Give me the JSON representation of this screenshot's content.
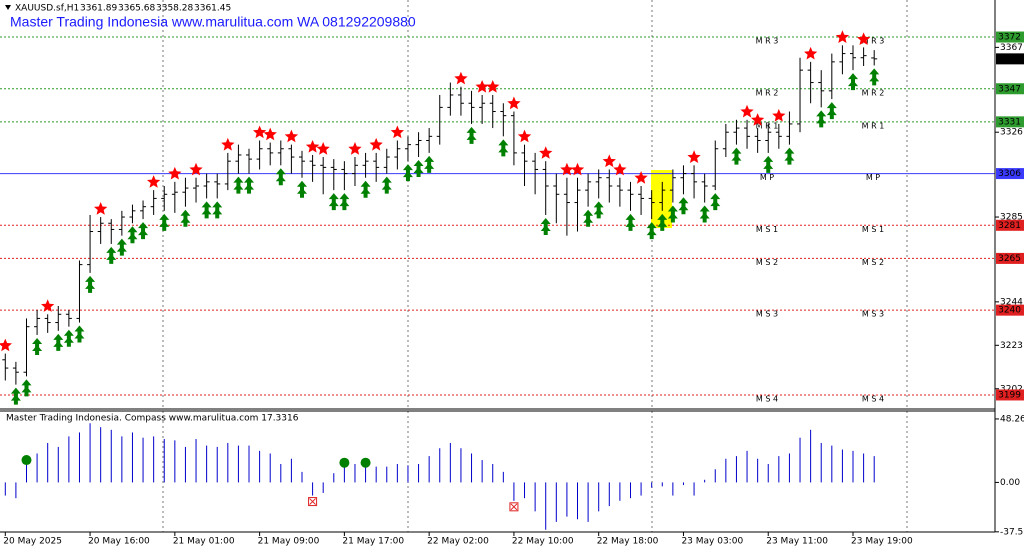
{
  "chart_data": [
    {
      "type": "ohlc",
      "symbol": "XAUUSD.sf,H1",
      "title": "Master Trading Indonesia www.marulitua.com WA 081292209880",
      "xlim": [
        -0.5,
        93.4
      ],
      "ylim": [
        3192.7,
        3389.9
      ],
      "yticks": [
        3367,
        3326,
        3285,
        3244,
        3223,
        3202
      ],
      "xticks": [
        {
          "value": 0,
          "label": "20 May 2025"
        },
        {
          "value": 8,
          "label": "20 May 16:00"
        },
        {
          "value": 16,
          "label": "21 May 01:00"
        },
        {
          "value": 24,
          "label": "21 May 09:00"
        },
        {
          "value": 32,
          "label": "21 May 17:00"
        },
        {
          "value": 40,
          "label": "22 May 02:00"
        },
        {
          "value": 48,
          "label": "22 May 10:00"
        },
        {
          "value": 56,
          "label": "22 May 18:00"
        },
        {
          "value": 64,
          "label": "23 May 03:00"
        },
        {
          "value": 72,
          "label": "23 May 11:00"
        },
        {
          "value": 80,
          "label": "23 May 19:00"
        }
      ],
      "bar_color": "#000000",
      "ohlc": [
        [
          3216,
          3219,
          3206,
          3212
        ],
        [
          3212,
          3215,
          3204,
          3210
        ],
        [
          3210,
          3236,
          3208,
          3232
        ],
        [
          3232,
          3240,
          3228,
          3236
        ],
        [
          3236,
          3238,
          3229,
          3234
        ],
        [
          3234,
          3242,
          3230,
          3238
        ],
        [
          3238,
          3240,
          3232,
          3236
        ],
        [
          3236,
          3264,
          3234,
          3262
        ],
        [
          3262,
          3286,
          3258,
          3278
        ],
        [
          3278,
          3285,
          3272,
          3282
        ],
        [
          3282,
          3284,
          3272,
          3279
        ],
        [
          3279,
          3288,
          3276,
          3285
        ],
        [
          3285,
          3291,
          3282,
          3288
        ],
        [
          3288,
          3293,
          3284,
          3290
        ],
        [
          3290,
          3298,
          3286,
          3294
        ],
        [
          3294,
          3300,
          3288,
          3296
        ],
        [
          3296,
          3302,
          3287,
          3297
        ],
        [
          3297,
          3304,
          3290,
          3299
        ],
        [
          3299,
          3304,
          3292,
          3300
        ],
        [
          3300,
          3306,
          3294,
          3302
        ],
        [
          3302,
          3306,
          3294,
          3301
        ],
        [
          3301,
          3316,
          3298,
          3312
        ],
        [
          3312,
          3320,
          3306,
          3315
        ],
        [
          3315,
          3318,
          3306,
          3313
        ],
        [
          3313,
          3322,
          3308,
          3318
        ],
        [
          3318,
          3321,
          3310,
          3316
        ],
        [
          3316,
          3322,
          3310,
          3318
        ],
        [
          3318,
          3320,
          3306,
          3314
        ],
        [
          3314,
          3317,
          3304,
          3312
        ],
        [
          3312,
          3315,
          3302,
          3310
        ],
        [
          3310,
          3314,
          3296,
          3309
        ],
        [
          3309,
          3313,
          3298,
          3308
        ],
        [
          3308,
          3312,
          3298,
          3306
        ],
        [
          3306,
          3314,
          3300,
          3310
        ],
        [
          3310,
          3316,
          3304,
          3312
        ],
        [
          3312,
          3316,
          3302,
          3309
        ],
        [
          3309,
          3318,
          3306,
          3314
        ],
        [
          3314,
          3322,
          3308,
          3318
        ],
        [
          3318,
          3324,
          3312,
          3320
        ],
        [
          3320,
          3326,
          3314,
          3322
        ],
        [
          3322,
          3328,
          3316,
          3324
        ],
        [
          3324,
          3344,
          3320,
          3338
        ],
        [
          3338,
          3350,
          3334,
          3344
        ],
        [
          3344,
          3348,
          3334,
          3340
        ],
        [
          3340,
          3346,
          3330,
          3338
        ],
        [
          3338,
          3344,
          3330,
          3340
        ],
        [
          3340,
          3344,
          3328,
          3336
        ],
        [
          3336,
          3340,
          3324,
          3334
        ],
        [
          3334,
          3336,
          3310,
          3316
        ],
        [
          3316,
          3320,
          3300,
          3312
        ],
        [
          3312,
          3316,
          3296,
          3308
        ],
        [
          3308,
          3312,
          3286,
          3300
        ],
        [
          3300,
          3306,
          3282,
          3296
        ],
        [
          3296,
          3304,
          3276,
          3292
        ],
        [
          3292,
          3304,
          3278,
          3298
        ],
        [
          3298,
          3306,
          3290,
          3302
        ],
        [
          3302,
          3308,
          3294,
          3304
        ],
        [
          3304,
          3308,
          3292,
          3300
        ],
        [
          3300,
          3304,
          3290,
          3298
        ],
        [
          3298,
          3302,
          3288,
          3296
        ],
        [
          3296,
          3300,
          3286,
          3294
        ],
        [
          3294,
          3298,
          3284,
          3292
        ],
        [
          3292,
          3302,
          3288,
          3298
        ],
        [
          3298,
          3308,
          3292,
          3304
        ],
        [
          3304,
          3310,
          3296,
          3306
        ],
        [
          3306,
          3310,
          3294,
          3302
        ],
        [
          3302,
          3306,
          3292,
          3300
        ],
        [
          3300,
          3322,
          3298,
          3318
        ],
        [
          3318,
          3330,
          3314,
          3326
        ],
        [
          3326,
          3332,
          3320,
          3328
        ],
        [
          3328,
          3332,
          3318,
          3324
        ],
        [
          3324,
          3328,
          3316,
          3322
        ],
        [
          3322,
          3330,
          3316,
          3326
        ],
        [
          3326,
          3330,
          3318,
          3324
        ],
        [
          3324,
          3336,
          3320,
          3330
        ],
        [
          3330,
          3362,
          3326,
          3356
        ],
        [
          3356,
          3360,
          3340,
          3350
        ],
        [
          3350,
          3356,
          3338,
          3346
        ],
        [
          3346,
          3364,
          3342,
          3360
        ],
        [
          3360,
          3368,
          3354,
          3364
        ],
        [
          3364,
          3368,
          3356,
          3362
        ],
        [
          3362,
          3367,
          3358,
          3363
        ],
        [
          3361.89,
          3365.68,
          3358.28,
          3361.45
        ]
      ],
      "sell_signals": [
        0,
        4,
        9,
        14,
        16,
        18,
        21,
        24,
        25,
        27,
        29,
        30,
        33,
        35,
        37,
        43,
        45,
        46,
        48,
        49,
        51,
        53,
        54,
        57,
        58,
        60,
        65,
        70,
        71,
        73,
        76,
        79,
        81
      ],
      "sell_color": "#ff0000",
      "buy_signals": [
        1,
        2,
        3,
        5,
        6,
        7,
        8,
        10,
        11,
        12,
        13,
        15,
        17,
        19,
        20,
        22,
        23,
        26,
        28,
        31,
        32,
        34,
        36,
        38,
        39,
        40,
        44,
        47,
        51,
        55,
        56,
        59,
        61,
        62,
        63,
        64,
        66,
        67,
        69,
        72,
        74,
        77,
        78,
        80,
        82
      ],
      "buy_color": "#008000",
      "levels": [
        {
          "name": "M R 3",
          "value": 3372,
          "color": "#2e9b2e",
          "dashed": true
        },
        {
          "name": "M R 2",
          "value": 3347,
          "color": "#2e9b2e",
          "dashed": true
        },
        {
          "name": "M R 1",
          "value": 3331,
          "color": "#2e9b2e",
          "dashed": true
        },
        {
          "name": "M P",
          "value": 3306,
          "color": "#3a3aff",
          "dashed": false
        },
        {
          "name": "M S 1",
          "value": 3281,
          "color": "#e02020",
          "dashed": true
        },
        {
          "name": "M S 2",
          "value": 3265,
          "color": "#e02020",
          "dashed": true
        },
        {
          "name": "M S 3",
          "value": 3240,
          "color": "#e02020",
          "dashed": true
        },
        {
          "name": "M S 4",
          "value": 3199,
          "color": "#e02020",
          "dashed": true
        }
      ],
      "current_price": {
        "value": 3361.45,
        "label": "3361"
      }
    },
    {
      "type": "histogram",
      "title": "Master Trading Indonesia. Compass www.marulitua.com 17.3316",
      "xlim": [
        -0.5,
        93.4
      ],
      "ylim": [
        -37.7,
        54.3
      ],
      "yticks": [
        48.26,
        {
          "value": 0,
          "label": "0.00"
        },
        -37.57
      ],
      "color": "#0000cc",
      "values": [
        -10,
        -12,
        17,
        22,
        30,
        27,
        35,
        38,
        45,
        42,
        40,
        35,
        38,
        34,
        35,
        33,
        32,
        27,
        33,
        28,
        27,
        30,
        28,
        28,
        24,
        22,
        14,
        18,
        8,
        -10,
        -8,
        7,
        15,
        14,
        15,
        12,
        12,
        14,
        13,
        14,
        20,
        26,
        30,
        26,
        22,
        17,
        14,
        8,
        -14,
        -12,
        -22,
        -36,
        -30,
        -26,
        -28,
        -30,
        -22,
        -18,
        -14,
        -12,
        -10,
        -4,
        -3,
        -10,
        -2,
        -10,
        2,
        10,
        18,
        20,
        24,
        18,
        14,
        20,
        22,
        34,
        40,
        30,
        28,
        25,
        24,
        22,
        20
      ],
      "up_dots": [
        2,
        32,
        34
      ],
      "up_color": "#008000",
      "down_marks": [
        29,
        48
      ],
      "down_color": "#e02020"
    }
  ]
}
